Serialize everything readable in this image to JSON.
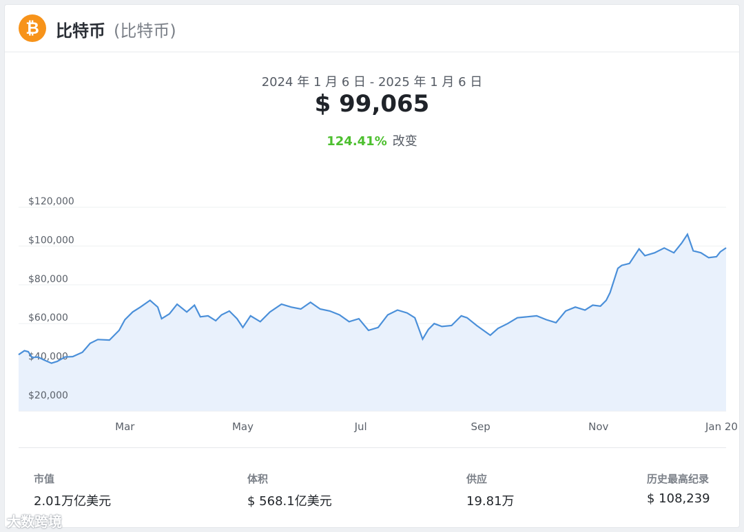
{
  "header": {
    "coin_symbol": "₿",
    "coin_name": "比特币",
    "coin_name_paren": "(比特币)"
  },
  "summary": {
    "date_range": "2024 年 1 月 6 日 - 2025 年 1 月 6 日",
    "price": "$ 99,065",
    "change_pct": "124.41%",
    "change_label": "改变"
  },
  "chart_data": {
    "type": "area",
    "title": "",
    "xlabel": "",
    "ylabel": "",
    "x_ticks": [
      "Mar",
      "May",
      "Jul",
      "Sep",
      "Nov",
      "Jan 20"
    ],
    "y_ticks": [
      "$20,000",
      "$40,000",
      "$60,000",
      "$80,000",
      "$100,000",
      "$120,000"
    ],
    "ylim": [
      15000,
      125000
    ],
    "xlim": [
      "2024-01-06",
      "2025-01-06"
    ],
    "grid": true,
    "colors": {
      "line": "#4a8fd9",
      "fill": "#e9f1fc"
    },
    "series": [
      {
        "x": [
          "2024-01-06",
          "2024-01-09",
          "2024-01-11",
          "2024-01-13",
          "2024-01-16",
          "2024-01-19",
          "2024-01-23",
          "2024-01-26",
          "2024-01-30",
          "2024-02-03",
          "2024-02-08",
          "2024-02-12",
          "2024-02-16",
          "2024-02-22",
          "2024-02-27",
          "2024-03-01",
          "2024-03-05",
          "2024-03-09",
          "2024-03-14",
          "2024-03-18",
          "2024-03-20",
          "2024-03-24",
          "2024-03-28",
          "2024-04-02",
          "2024-04-06",
          "2024-04-09",
          "2024-04-13",
          "2024-04-17",
          "2024-04-20",
          "2024-04-24",
          "2024-04-28",
          "2024-05-01",
          "2024-05-05",
          "2024-05-10",
          "2024-05-15",
          "2024-05-21",
          "2024-05-26",
          "2024-05-31",
          "2024-06-05",
          "2024-06-10",
          "2024-06-15",
          "2024-06-20",
          "2024-06-25",
          "2024-06-30",
          "2024-07-05",
          "2024-07-10",
          "2024-07-15",
          "2024-07-20",
          "2024-07-25",
          "2024-07-29",
          "2024-08-02",
          "2024-08-05",
          "2024-08-08",
          "2024-08-12",
          "2024-08-17",
          "2024-08-22",
          "2024-08-25",
          "2024-08-30",
          "2024-09-06",
          "2024-09-10",
          "2024-09-15",
          "2024-09-20",
          "2024-09-25",
          "2024-09-30",
          "2024-10-05",
          "2024-10-10",
          "2024-10-15",
          "2024-10-20",
          "2024-10-25",
          "2024-10-29",
          "2024-11-02",
          "2024-11-05",
          "2024-11-07",
          "2024-11-11",
          "2024-11-13",
          "2024-11-17",
          "2024-11-22",
          "2024-11-25",
          "2024-11-30",
          "2024-12-05",
          "2024-12-10",
          "2024-12-14",
          "2024-12-17",
          "2024-12-20",
          "2024-12-24",
          "2024-12-28",
          "2025-01-01",
          "2025-01-03",
          "2025-01-06"
        ],
        "values": [
          44000,
          46000,
          45500,
          42500,
          42800,
          41300,
          39600,
          40500,
          42800,
          43000,
          45200,
          49800,
          51800,
          51500,
          56500,
          62000,
          66000,
          68500,
          72000,
          68500,
          62500,
          65000,
          70000,
          66000,
          69500,
          63500,
          64000,
          61500,
          64500,
          66500,
          62500,
          58000,
          64000,
          61000,
          66000,
          70000,
          68500,
          67500,
          71000,
          67500,
          66500,
          64500,
          61000,
          62500,
          56500,
          58000,
          64500,
          67000,
          65500,
          63000,
          52000,
          57000,
          60000,
          58500,
          59000,
          64000,
          63000,
          59000,
          54000,
          57500,
          60000,
          63000,
          63500,
          64000,
          62000,
          60500,
          66500,
          68500,
          67000,
          69500,
          69000,
          72000,
          76000,
          88500,
          90000,
          91000,
          98500,
          95000,
          96500,
          99000,
          96500,
          101500,
          106000,
          97500,
          96500,
          94000,
          94500,
          97000,
          99065
        ]
      }
    ]
  },
  "stats": [
    {
      "label": "市值",
      "value": "2.01万亿美元"
    },
    {
      "label": "体积",
      "value": "$ 568.1亿美元"
    },
    {
      "label": "供应",
      "value": "19.81万"
    },
    {
      "label": "历史最高纪录",
      "value": "$ 108,239"
    }
  ],
  "watermark": "大数跨境"
}
